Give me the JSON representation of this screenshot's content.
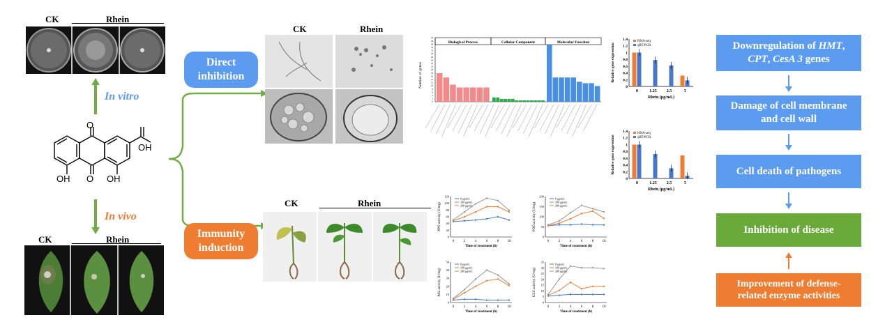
{
  "left": {
    "ck": "CK",
    "rhein": "Rhein",
    "in_vitro": "In vitro",
    "in_vivo": "In vivo",
    "oh_right": "OH",
    "oh_left": "OH",
    "oh_mid": "OH",
    "o_top": "O",
    "o_bottom": "O"
  },
  "boxes": {
    "direct": "Direct inhibition",
    "immunity": "Immunity induction"
  },
  "micro": {
    "ck": "CK",
    "rhein": "Rhein"
  },
  "plants": {
    "ck": "CK",
    "rhein": "Rhein"
  },
  "go_chart": {
    "ylabel": "Number of genes",
    "sections": [
      "Biological Process",
      "Cellular Component",
      "Molecular Function"
    ],
    "ticks": [
      "40",
      "38",
      "36",
      "34",
      "32",
      "30",
      "28",
      "26",
      "24",
      "22",
      "20",
      "18",
      "16",
      "14",
      "12",
      "10",
      "8",
      "6",
      "4",
      "2",
      "0"
    ]
  },
  "bar_charts": {
    "legend_rna": "RNA-seq",
    "legend_qrt": "qRT-PCR",
    "ylabel": "Relative gene expression",
    "xlabel": "Rhein (μg/mL)",
    "categories": [
      "0",
      "1.25",
      "2.5",
      "5"
    ],
    "yticks": [
      "1.4",
      "1.2",
      "1",
      "0.8",
      "0.6",
      "0.4",
      "0.2",
      "0"
    ]
  },
  "line_charts": {
    "xlabel": "Time of treatment (h)",
    "xticks": [
      "0",
      "2",
      "4",
      "6",
      "8",
      "10"
    ],
    "legend": [
      "0 μg/mL",
      "100 μg/mL",
      "200 μg/mL"
    ],
    "ylabels": [
      "PPO activity (U/mg)",
      "POD activity (U/mg)",
      "PAL activity (U/mg)",
      "GLU activity (U/mg)"
    ]
  },
  "flow": {
    "step1_a": "Downregulation of ",
    "step1_genes1": "HMT",
    "step1_b": ", ",
    "step1_genes2": "CPT",
    "step1_c": ", ",
    "step1_genes3": "CesA 3",
    "step1_d": " genes",
    "step2": "Damage of cell membrane and cell wall",
    "step3": "Cell death of pathogens",
    "step4": "Inhibition of disease",
    "step5": "Improvement of defense-related enzyme activities"
  },
  "chart_data": [
    {
      "type": "bar",
      "title": "",
      "xlabel": "Rhein (μg/mL)",
      "ylabel": "Relative gene expression",
      "categories": [
        "0",
        "1.25",
        "2.5",
        "5"
      ],
      "ylim": [
        0,
        1.4
      ],
      "series": [
        {
          "name": "RNA-seq",
          "values": [
            1.0,
            null,
            null,
            0.32
          ]
        },
        {
          "name": "qRT-PCR",
          "values": [
            1.0,
            0.78,
            0.62,
            0.18
          ]
        }
      ]
    },
    {
      "type": "bar",
      "title": "",
      "xlabel": "Rhein (μg/mL)",
      "ylabel": "Relative gene expression",
      "categories": [
        "0",
        "1.25",
        "2.5",
        "5"
      ],
      "ylim": [
        0,
        1.4
      ],
      "series": [
        {
          "name": "RNA-seq",
          "values": [
            1.0,
            null,
            null,
            0.68
          ]
        },
        {
          "name": "qRT-PCR",
          "values": [
            1.0,
            0.72,
            0.3,
            0.08
          ]
        }
      ]
    }
  ],
  "colors": {
    "blue": "#5b9bf0",
    "green": "#6aaa3a",
    "orange": "#ee7d31",
    "arrow_green": "#70ad47"
  }
}
